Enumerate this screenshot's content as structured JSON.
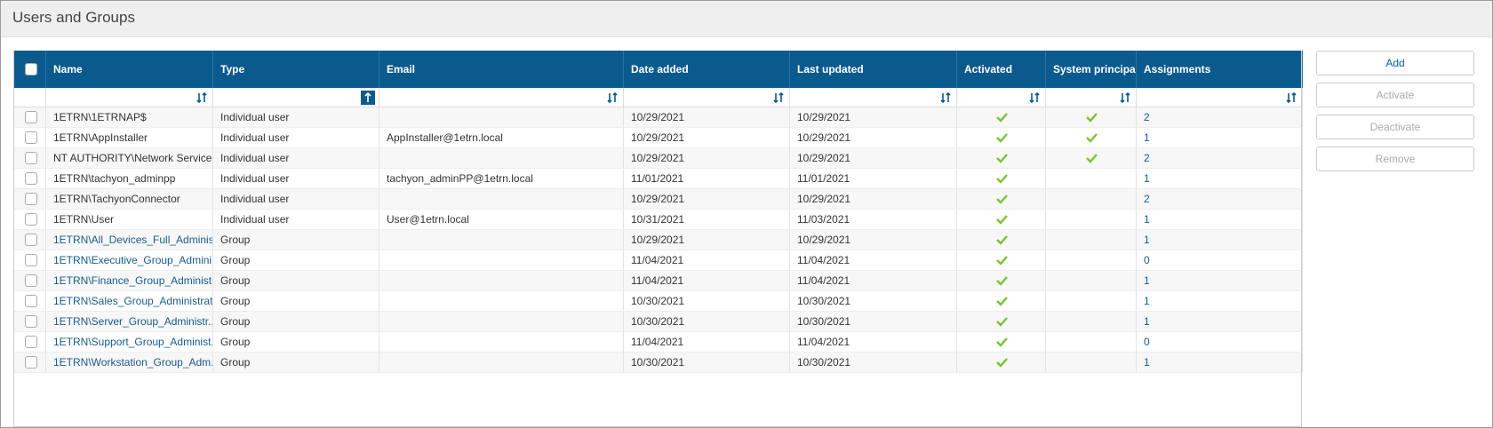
{
  "header": {
    "title": "Users and Groups"
  },
  "table": {
    "columns": [
      "Name",
      "Type",
      "Email",
      "Date added",
      "Last updated",
      "Activated",
      "System principal",
      "Assignments"
    ],
    "rows": [
      [
        "1ETRN\\1ETRNAP$",
        "Individual user",
        null,
        "10/29/2021",
        "10/29/2021",
        true,
        true,
        2
      ],
      [
        "1ETRN\\AppInstaller",
        "Individual user",
        "AppInstaller@1etrn.local",
        "10/29/2021",
        "10/29/2021",
        true,
        true,
        1
      ],
      [
        "NT AUTHORITY\\Network Service",
        "Individual user",
        null,
        "10/29/2021",
        "10/29/2021",
        true,
        true,
        2
      ],
      [
        "1ETRN\\tachyon_adminpp",
        "Individual user",
        "tachyon_adminPP@1etrn.local",
        "11/01/2021",
        "11/01/2021",
        true,
        false,
        1
      ],
      [
        "1ETRN\\TachyonConnector",
        "Individual user",
        null,
        "10/29/2021",
        "10/29/2021",
        true,
        false,
        2
      ],
      [
        "1ETRN\\User",
        "Individual user",
        "User@1etrn.local",
        "10/31/2021",
        "11/03/2021",
        true,
        false,
        1
      ],
      [
        "1ETRN\\All_Devices_Full_Adminis...",
        "Group",
        null,
        "10/29/2021",
        "10/29/2021",
        true,
        false,
        1
      ],
      [
        "1ETRN\\Executive_Group_Admini...",
        "Group",
        null,
        "11/04/2021",
        "11/04/2021",
        true,
        false,
        0
      ],
      [
        "1ETRN\\Finance_Group_Administ...",
        "Group",
        null,
        "11/04/2021",
        "11/04/2021",
        true,
        false,
        1
      ],
      [
        "1ETRN\\Sales_Group_Administrat...",
        "Group",
        null,
        "10/30/2021",
        "10/30/2021",
        true,
        false,
        1
      ],
      [
        "1ETRN\\Server_Group_Administr...",
        "Group",
        null,
        "10/30/2021",
        "10/30/2021",
        true,
        false,
        1
      ],
      [
        "1ETRN\\Support_Group_Administ...",
        "Group",
        null,
        "11/04/2021",
        "11/04/2021",
        true,
        false,
        0
      ],
      [
        "1ETRN\\Workstation_Group_Adm...",
        "Group",
        null,
        "10/30/2021",
        "10/30/2021",
        true,
        false,
        1
      ]
    ]
  },
  "buttons": [
    {
      "label": "Add",
      "enabled": true
    },
    {
      "label": "Activate",
      "enabled": false
    },
    {
      "label": "Deactivate",
      "enabled": false
    },
    {
      "label": "Remove",
      "enabled": false
    }
  ]
}
